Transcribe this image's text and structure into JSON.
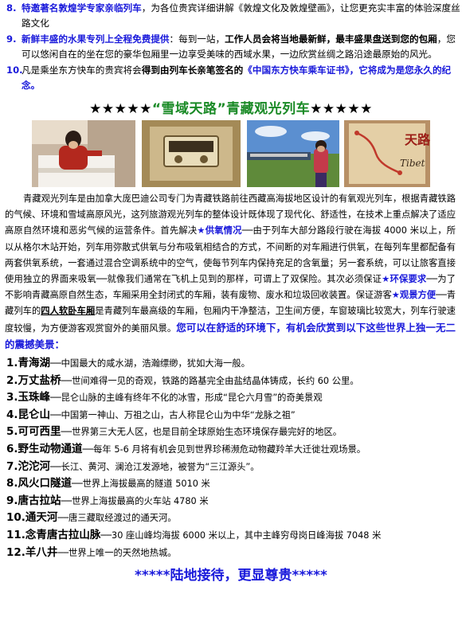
{
  "items": [
    {
      "num": "8.",
      "lead": "特邀著名敦煌学专家亲临列车",
      "text": "，为各位贵宾详细讲解《敦煌文化及敦煌壁画》，让您更充实丰富的体验深度丝路文化"
    },
    {
      "num": "9.",
      "lead": "新鲜丰盛的水果专列上全程免费提供",
      "text": "：每到一站，",
      "bold": "工作人员会将当地最新鲜，最丰盛果盘送到您的包厢",
      "text2": "，您可以悠闲自在的坐在您的豪华包厢里一边享受美味的西域水果，一边欣赏丝绸之路沿途最原始的风光。"
    },
    {
      "num": "10.",
      "text": "凡是乘坐东方快车的贵宾将会",
      "bold": "得到由列车长亲笔签名的",
      "blue": "《中国东方快车乘车证书》，它将成为是您永久的纪念。"
    }
  ],
  "title": {
    "stars_left": "★★★★★",
    "text": "“雪域天路”青藏观光列车",
    "stars_right": "★★★★★"
  },
  "photos": [
    {
      "name": "attendant-photo"
    },
    {
      "name": "oxygen-outlet-photo"
    },
    {
      "name": "train-grassland-photo"
    },
    {
      "name": "map-photo",
      "label_tibet": "Tibet",
      "label_tianlu": "天路"
    }
  ],
  "para": {
    "p1": "青藏观光列车是由加拿大庞巴迪公司专门为青藏铁路前往西藏高海拔地区设计的有氧观光列车，根据青藏铁路的气候、环境和雪域高原风光，这列旅游观光列车的整体设计既体现了现代化、舒适性，在技术上重点解决了适应高原自然环境和恶劣气候的运营条件。首先解决",
    "h1": "★供氧情况",
    "p2": "──由于列车大部分路段行驶在海拔 4000 米以上，所以从格尔木站开始，列车用弥散式供氧与分布吸氧相结合的方式，不间断的对车厢进行供氧，在每列车里都配备有两套供氧系统，一套通过混合空调系统中的空气，使每节列车内保持充足的含氧量；另一套系统，可以让旅客直接使用独立的界面来吸氧──就像我们通常在飞机上见到的那样，可谓上了双保险。其次必须保证",
    "h2": "★环保要求",
    "p3": "──为了不影响青藏高原自然生态，车厢采用全封闭式的车厢，装有废物、废水和垃圾回收装置。保证游客",
    "h3": "★观景方便",
    "p4": "──青藏列车的",
    "ul": "四人软卧车厢",
    "p5": "是青藏列车最高级的车厢，包厢内干净整洁，卫生间方便，车窗玻璃比较宽大，列车行驶速度较慢，为方便游客观赏窗外的美丽风景。",
    "tail": "您可以在舒适的环境下，有机会欣赏到以下这些世界上独一无二的震撼美景："
  },
  "sights": [
    {
      "name": "1.青海湖",
      "desc": "──中国最大的咸水湖，浩瀚缥缈，犹如大海一般。"
    },
    {
      "name": "2.万丈盐桥",
      "desc": "──世间难得一见的奇观，铁路的路基完全由盐结晶体铸成，长约 60 公里。"
    },
    {
      "name": "3.玉珠峰",
      "desc": "──昆仑山脉的主峰有终年不化的冰雪，形成“昆仑六月雪”的奇美景观"
    },
    {
      "name": "4.昆仑山",
      "desc": "──中国第一神山、万祖之山，古人称昆仑山为中华“龙脉之祖”"
    },
    {
      "name": "5.可可西里",
      "desc": "──世界第三大无人区，也是目前全球原始生态环境保存最完好的地区。"
    },
    {
      "name": "6.野生动物通道",
      "desc": "──每年 5-6 月将有机会见到世界珍稀濒危动物藏羚羊大迁徙壮观场景。"
    },
    {
      "name": "7.沱沱河",
      "desc": "──长江、黄河、澜沧江发源地，被誉为“三江源头”。"
    },
    {
      "name": "8.风火口隧道",
      "desc": "──世界上海拔最高的隧道 5010 米"
    },
    {
      "name": "9.唐古拉站",
      "desc": "──世界上海拔最高的火车站 4780 米"
    },
    {
      "name": "10.通天河",
      "desc": "──唐三藏取经渡过的通天河。"
    },
    {
      "name": "11.念青唐古拉山脉",
      "desc": "──30 座山峰均海拔 6000 米以上，其中主峰穷母岗日峰海拔 7048 米"
    },
    {
      "name": "12.羊八井",
      "desc": "──世界上唯一的天然地热城。"
    }
  ],
  "footer": "*****陆地接待，更显尊贵*****"
}
